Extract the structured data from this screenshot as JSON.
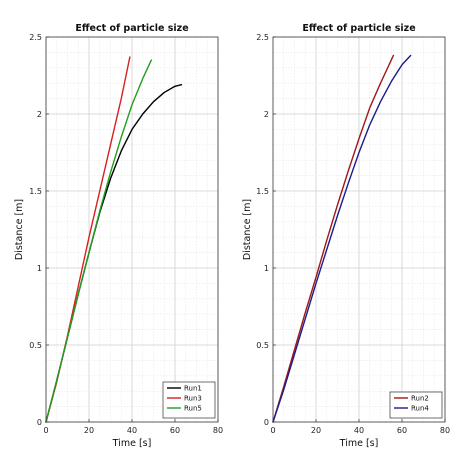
{
  "chart_data": [
    {
      "type": "line",
      "title": "Effect of particle size",
      "xlabel": "Time [s]",
      "ylabel": "Distance [m]",
      "xlim": [
        0,
        80
      ],
      "ylim": [
        0,
        2.5
      ],
      "xticks": [
        "0",
        "20",
        "40",
        "60",
        "80"
      ],
      "yticks": [
        "0",
        "0.5",
        "1",
        "1.5",
        "2",
        "2.5"
      ],
      "grid": true,
      "legend_position": "bottom-right",
      "series": [
        {
          "name": "Run1",
          "color": "#000000",
          "x": [
            0,
            5,
            10,
            15,
            20,
            25,
            30,
            35,
            40,
            45,
            50,
            55,
            60,
            63
          ],
          "y": [
            0,
            0.27,
            0.55,
            0.83,
            1.1,
            1.36,
            1.58,
            1.76,
            1.9,
            2.0,
            2.08,
            2.14,
            2.18,
            2.19
          ]
        },
        {
          "name": "Run3",
          "color": "#d62020",
          "x": [
            0,
            5,
            10,
            15,
            20,
            25,
            30,
            35,
            39
          ],
          "y": [
            0,
            0.26,
            0.56,
            0.88,
            1.2,
            1.5,
            1.8,
            2.1,
            2.37
          ]
        },
        {
          "name": "Run5",
          "color": "#1f9e1f",
          "x": [
            0,
            5,
            10,
            15,
            20,
            25,
            30,
            35,
            40,
            45,
            49
          ],
          "y": [
            0,
            0.27,
            0.55,
            0.83,
            1.1,
            1.37,
            1.62,
            1.85,
            2.06,
            2.23,
            2.35
          ]
        }
      ]
    },
    {
      "type": "line",
      "title": "Effect of particle size",
      "xlabel": "Time [s]",
      "ylabel": "Distance [m]",
      "xlim": [
        0,
        80
      ],
      "ylim": [
        0,
        2.5
      ],
      "xticks": [
        "0",
        "20",
        "40",
        "60",
        "80"
      ],
      "yticks": [
        "0",
        "0.5",
        "1",
        "1.5",
        "2",
        "2.5"
      ],
      "grid": true,
      "legend_position": "bottom-right",
      "series": [
        {
          "name": "Run2",
          "color": "#a01818",
          "x": [
            0,
            5,
            10,
            15,
            20,
            25,
            30,
            35,
            40,
            45,
            50,
            56
          ],
          "y": [
            0,
            0.23,
            0.47,
            0.71,
            0.94,
            1.18,
            1.41,
            1.63,
            1.84,
            2.04,
            2.2,
            2.38
          ]
        },
        {
          "name": "Run4",
          "color": "#1c1c8c",
          "x": [
            0,
            5,
            10,
            15,
            20,
            25,
            30,
            35,
            40,
            45,
            50,
            55,
            60,
            64
          ],
          "y": [
            0,
            0.21,
            0.44,
            0.67,
            0.9,
            1.12,
            1.34,
            1.55,
            1.75,
            1.93,
            2.08,
            2.21,
            2.32,
            2.38
          ]
        }
      ]
    }
  ]
}
